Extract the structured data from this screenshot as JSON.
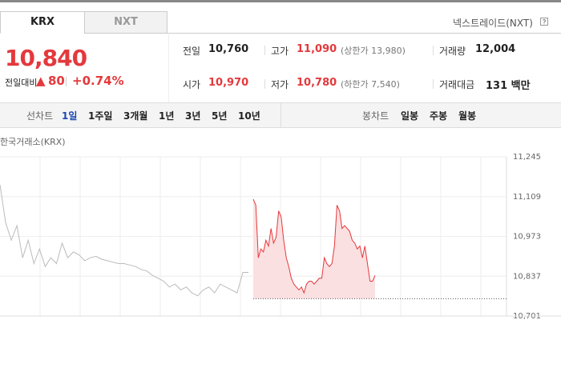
{
  "tabs": [
    "KRX",
    "NXT"
  ],
  "nxt_link": "넥스트레이드(NXT)",
  "price": {
    "current": "10,840",
    "change_label": "전일대비",
    "change_arrow": "▲",
    "change": "80",
    "change_pct": "+0.74%"
  },
  "info": [
    {
      "label": "전일",
      "value": "10,760"
    },
    {
      "label": "고가",
      "value": "11,090",
      "note": "(상한가 13,980)"
    },
    {
      "label": "거래량",
      "value": "12,004"
    },
    {
      "label": "시가",
      "value": "10,970"
    },
    {
      "label": "저가",
      "value": "10,780",
      "note": "(하한가 7,540)"
    },
    {
      "label": "거래대금",
      "value": "131 백만"
    }
  ],
  "periods": {
    "line_label": "선차트",
    "line_items": [
      "1일",
      "1주일",
      "3개월",
      "1년",
      "3년",
      "5년",
      "10년"
    ],
    "active": 0,
    "candle_label": "봉차트",
    "candle_items": [
      "일봉",
      "주봉",
      "월봉"
    ]
  },
  "chart": {
    "type": "line",
    "source": "한국거래소(KRX)",
    "ylim": [
      10701,
      11245
    ],
    "yticks": [
      {
        "value": 11245,
        "label": "11,245"
      },
      {
        "value": 11109,
        "label": "11,109"
      },
      {
        "value": 10973,
        "label": "10,973"
      },
      {
        "value": 10837,
        "label": "10,837"
      },
      {
        "value": 10701,
        "label": "10,701"
      }
    ],
    "baseline": 10760,
    "series": [
      {
        "color": "#bbbbbb",
        "values": [
          11150,
          11020,
          10960,
          11010,
          10900,
          10960,
          10880,
          10930,
          10870,
          10900,
          10880,
          10950,
          10900,
          10920,
          10910,
          10890,
          10900,
          10905,
          10895,
          10890,
          10885,
          10880,
          10880,
          10875,
          10870,
          10860,
          10855,
          10840,
          10830,
          10820,
          10800,
          10810,
          10790,
          10800,
          10780,
          10770,
          10790,
          10800,
          10780,
          10810,
          10800,
          10790,
          10780,
          10850,
          10850
        ]
      },
      {
        "color": "#e4393c",
        "fill": "#fbe0e1",
        "values": [
          11100,
          11080,
          10900,
          10930,
          10920,
          10960,
          10940,
          11000,
          10950,
          10970,
          11060,
          11040,
          10960,
          10900,
          10870,
          10830,
          10810,
          10800,
          10790,
          10800,
          10780,
          10810,
          10820,
          10820,
          10810,
          10820,
          10830,
          10830,
          10900,
          10880,
          10870,
          10880,
          10940,
          11080,
          11060,
          11000,
          11010,
          11000,
          10990,
          10960,
          10950,
          10930,
          10940,
          10900,
          10940,
          10880,
          10820,
          10820,
          10840
        ]
      }
    ]
  }
}
